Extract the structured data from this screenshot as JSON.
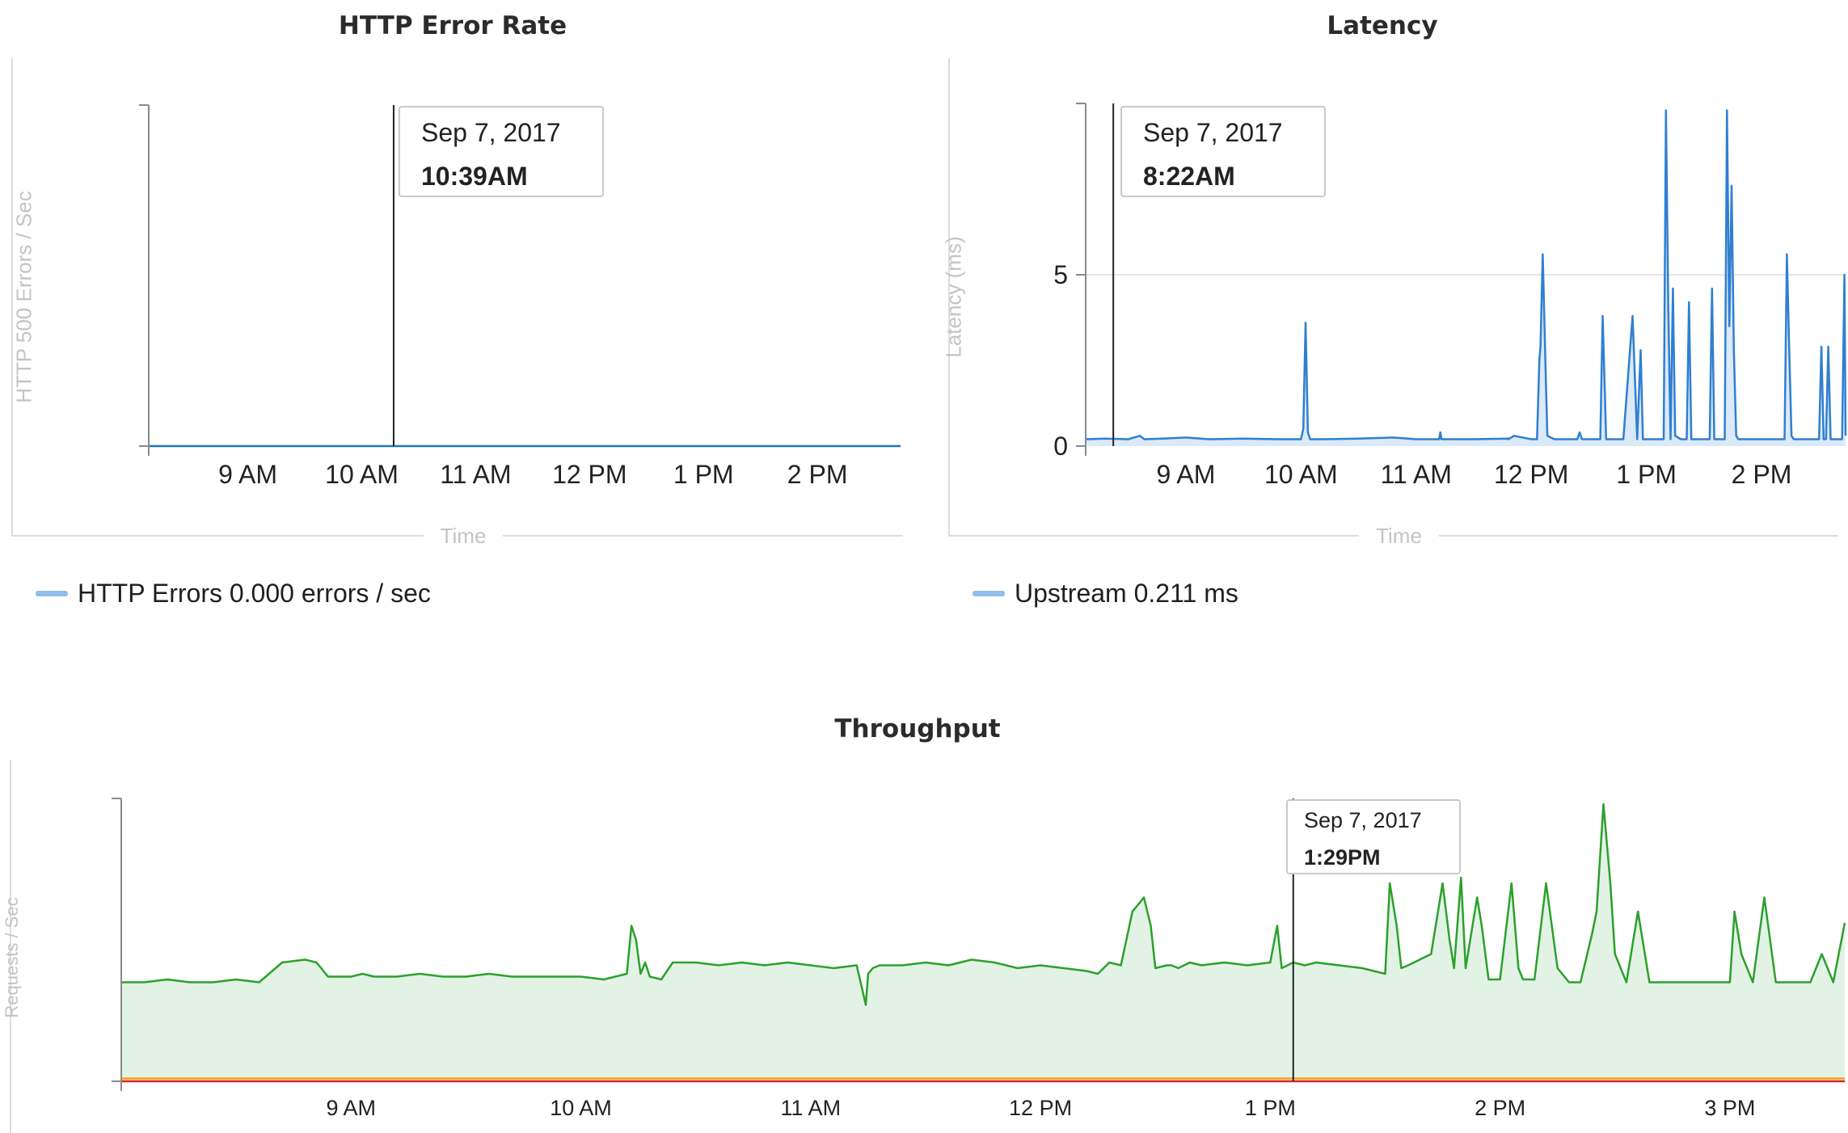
{
  "chart_data": [
    {
      "id": "errors",
      "type": "area",
      "title": "HTTP Error Rate",
      "xlabel": "Time",
      "ylabel": "HTTP 500 Errors / Sec",
      "x_ticks": [
        "9 AM",
        "10 AM",
        "11 AM",
        "12 PM",
        "1 PM",
        "2 PM"
      ],
      "x_tick_hours": [
        9,
        10,
        11,
        12,
        13,
        14
      ],
      "x_range_hours": [
        8.13,
        14.73
      ],
      "ylim": [
        0,
        1
      ],
      "y_ticks": [],
      "grid": false,
      "legend_position": "bottom-left",
      "series": [
        {
          "name": "HTTP Errors",
          "color": "#1f77b4",
          "legend_color": "#8fbfea",
          "unit": "errors / sec",
          "current_value": "0.000",
          "x": [
            8.13,
            14.73
          ],
          "y": [
            0,
            0
          ]
        }
      ],
      "tooltip": {
        "date": "Sep 7, 2017",
        "time": "10:39AM",
        "hour": 10.28
      }
    },
    {
      "id": "latency",
      "type": "area",
      "title": "Latency",
      "xlabel": "Time",
      "ylabel": "Latency (ms)",
      "x_ticks": [
        "9 AM",
        "10 AM",
        "11 AM",
        "12 PM",
        "1 PM",
        "2 PM"
      ],
      "x_tick_hours": [
        9,
        10,
        11,
        12,
        13,
        14
      ],
      "x_range_hours": [
        8.13,
        14.73
      ],
      "ylim": [
        0,
        10
      ],
      "y_ticks": [
        0,
        5
      ],
      "grid": true,
      "legend_position": "bottom-left",
      "series": [
        {
          "name": "Upstream",
          "color": "#2f7fd1",
          "legend_color": "#8fbfea",
          "unit": "ms",
          "current_value": "0.211",
          "x": [
            8.13,
            8.3,
            8.5,
            8.6,
            8.62,
            8.64,
            8.8,
            9.0,
            9.2,
            9.5,
            9.8,
            10.0,
            10.02,
            10.04,
            10.06,
            10.08,
            10.2,
            10.5,
            10.8,
            11.0,
            11.2,
            11.21,
            11.22,
            11.5,
            11.8,
            11.8,
            11.85,
            12.0,
            12.05,
            12.07,
            12.08,
            12.1,
            12.12,
            12.14,
            12.2,
            12.3,
            12.4,
            12.42,
            12.44,
            12.5,
            12.6,
            12.62,
            12.64,
            12.65,
            12.7,
            12.8,
            12.88,
            12.9,
            12.92,
            12.95,
            12.97,
            13.0,
            13.1,
            13.15,
            13.17,
            13.19,
            13.21,
            13.23,
            13.25,
            13.3,
            13.35,
            13.37,
            13.39,
            13.41,
            13.45,
            13.5,
            13.55,
            13.57,
            13.59,
            13.61,
            13.65,
            13.68,
            13.7,
            13.72,
            13.74,
            13.76,
            13.78,
            13.8,
            13.85,
            13.9,
            14.0,
            14.1,
            14.2,
            14.22,
            14.24,
            14.26,
            14.28,
            14.3,
            14.5,
            14.52,
            14.54,
            14.56,
            14.58,
            14.6,
            14.65,
            14.7,
            14.72,
            14.73
          ],
          "y": [
            0.2,
            0.22,
            0.2,
            0.3,
            0.25,
            0.2,
            0.22,
            0.25,
            0.2,
            0.22,
            0.2,
            0.2,
            0.5,
            3.6,
            0.4,
            0.2,
            0.2,
            0.22,
            0.25,
            0.2,
            0.2,
            0.4,
            0.2,
            0.2,
            0.22,
            0.2,
            0.3,
            0.2,
            0.2,
            2.5,
            2.9,
            5.6,
            2.8,
            0.3,
            0.2,
            0.2,
            0.2,
            0.4,
            0.2,
            0.2,
            0.2,
            3.8,
            1.5,
            0.2,
            0.2,
            0.2,
            3.8,
            2.0,
            0.2,
            2.8,
            0.2,
            0.2,
            0.2,
            0.2,
            9.8,
            4.0,
            0.2,
            4.6,
            0.3,
            0.2,
            0.2,
            4.2,
            0.2,
            0.2,
            0.2,
            0.2,
            0.2,
            4.6,
            0.2,
            0.2,
            0.2,
            0.2,
            9.8,
            3.5,
            7.6,
            2.8,
            0.3,
            0.2,
            0.2,
            0.2,
            0.2,
            0.2,
            0.2,
            5.6,
            2.9,
            0.3,
            0.2,
            0.2,
            0.2,
            2.9,
            0.2,
            0.2,
            2.9,
            0.2,
            0.2,
            0.2,
            5.0,
            0.3
          ]
        }
      ],
      "tooltip": {
        "date": "Sep 7, 2017",
        "time": "8:22AM",
        "hour": 8.37
      }
    },
    {
      "id": "throughput",
      "type": "area",
      "title": "Throughput",
      "xlabel": "",
      "ylabel": "Requests / Sec",
      "x_ticks": [
        "9 AM",
        "10 AM",
        "11 AM",
        "12 PM",
        "1 PM",
        "2 PM",
        "3 PM"
      ],
      "x_tick_hours": [
        9,
        10,
        11,
        12,
        13,
        14,
        15
      ],
      "x_range_hours": [
        8.0,
        15.5
      ],
      "ylim": [
        0,
        1
      ],
      "y_ticks": [],
      "grid": false,
      "legend_position": "none",
      "series": [
        {
          "name": "",
          "color": "#2ca02c",
          "fill": "#e2f3e6",
          "x": [
            8.0,
            8.1,
            8.2,
            8.3,
            8.4,
            8.5,
            8.6,
            8.7,
            8.8,
            8.85,
            8.9,
            9.0,
            9.05,
            9.1,
            9.2,
            9.3,
            9.4,
            9.5,
            9.6,
            9.7,
            9.8,
            9.9,
            10.0,
            10.1,
            10.15,
            10.2,
            10.22,
            10.24,
            10.26,
            10.28,
            10.3,
            10.35,
            10.4,
            10.5,
            10.6,
            10.7,
            10.8,
            10.9,
            11.0,
            11.1,
            11.2,
            11.24,
            11.25,
            11.27,
            11.3,
            11.4,
            11.5,
            11.6,
            11.7,
            11.8,
            11.85,
            11.9,
            12.0,
            12.1,
            12.2,
            12.25,
            12.3,
            12.35,
            12.4,
            12.45,
            12.48,
            12.5,
            12.55,
            12.57,
            12.6,
            12.65,
            12.7,
            12.8,
            12.9,
            13.0,
            13.03,
            13.05,
            13.1,
            13.15,
            13.2,
            13.3,
            13.4,
            13.5,
            13.52,
            13.55,
            13.57,
            13.6,
            13.7,
            13.75,
            13.78,
            13.8,
            13.83,
            13.85,
            13.9,
            13.92,
            13.95,
            14.0,
            14.05,
            14.08,
            14.1,
            14.15,
            14.2,
            14.25,
            14.3,
            14.35,
            14.4,
            14.42,
            14.45,
            14.48,
            14.5,
            14.55,
            14.6,
            14.65,
            14.7,
            14.8,
            14.9,
            15.0,
            15.02,
            15.05,
            15.1,
            15.15,
            15.2,
            15.25,
            15.3,
            15.35,
            15.4,
            15.45,
            15.5
          ],
          "y": [
            0.35,
            0.35,
            0.36,
            0.35,
            0.35,
            0.36,
            0.35,
            0.42,
            0.43,
            0.42,
            0.37,
            0.37,
            0.38,
            0.37,
            0.37,
            0.38,
            0.37,
            0.37,
            0.38,
            0.37,
            0.37,
            0.37,
            0.37,
            0.36,
            0.37,
            0.38,
            0.55,
            0.5,
            0.38,
            0.42,
            0.37,
            0.36,
            0.42,
            0.42,
            0.41,
            0.42,
            0.41,
            0.42,
            0.41,
            0.4,
            0.41,
            0.27,
            0.38,
            0.4,
            0.41,
            0.41,
            0.42,
            0.41,
            0.43,
            0.42,
            0.41,
            0.4,
            0.41,
            0.4,
            0.39,
            0.38,
            0.42,
            0.41,
            0.6,
            0.65,
            0.55,
            0.4,
            0.41,
            0.41,
            0.4,
            0.42,
            0.41,
            0.42,
            0.41,
            0.42,
            0.55,
            0.4,
            0.42,
            0.41,
            0.42,
            0.41,
            0.4,
            0.38,
            0.7,
            0.55,
            0.4,
            0.41,
            0.45,
            0.7,
            0.5,
            0.4,
            0.72,
            0.4,
            0.65,
            0.55,
            0.36,
            0.36,
            0.7,
            0.4,
            0.36,
            0.36,
            0.7,
            0.4,
            0.35,
            0.35,
            0.52,
            0.6,
            0.98,
            0.7,
            0.45,
            0.35,
            0.6,
            0.35,
            0.35,
            0.35,
            0.35,
            0.35,
            0.6,
            0.45,
            0.35,
            0.65,
            0.35,
            0.35,
            0.35,
            0.35,
            0.45,
            0.35,
            0.56
          ]
        },
        {
          "name": "",
          "color": "#ff9f1a",
          "x": [
            8.0,
            15.5
          ],
          "y": [
            0.01,
            0.01
          ]
        },
        {
          "name": "",
          "color": "#d62728",
          "x": [
            8.0,
            15.5
          ],
          "y": [
            0.0,
            0.0
          ]
        }
      ],
      "tooltip": {
        "date": "Sep 7, 2017",
        "time": "1:29PM",
        "hour": 13.1
      }
    }
  ],
  "legends": {
    "errors": {
      "name": "HTTP Errors",
      "value": "0.000 errors / sec"
    },
    "latency": {
      "name": "Upstream",
      "value": "0.211 ms"
    }
  }
}
